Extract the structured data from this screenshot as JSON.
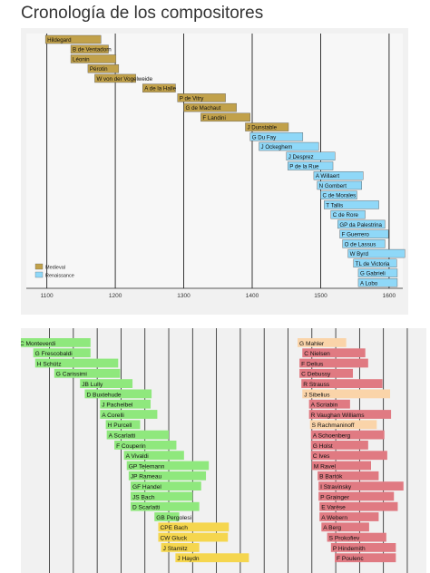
{
  "page": {
    "title": "Cronología de los compositores"
  },
  "colors": {
    "Medieval": "#c1a14a",
    "Renaissance": "#8fd8f8",
    "Baroque": "#8fe87d",
    "Classical": "#f5d64e",
    "Romantic": "#fad4a9",
    "Modern": "#e07a82",
    "grid": "#222222",
    "bar_edge": "#555555"
  },
  "chart_data": [
    {
      "type": "bar",
      "orientation": "horizontal-timeline",
      "title": "",
      "xlabel": "",
      "ylabel": "",
      "xlim": [
        1070,
        1620
      ],
      "xticks": [
        1100,
        1200,
        1300,
        1400,
        1500,
        1600
      ],
      "grid": "vertical",
      "legend": {
        "position": "bottom-left",
        "entries": [
          "Medieval",
          "Renaissance"
        ]
      },
      "composers": [
        {
          "name": "Hildegard",
          "start": 1098,
          "end": 1179,
          "period": "Medieval"
        },
        {
          "name": "B de Ventadorn",
          "start": 1135,
          "end": 1190,
          "period": "Medieval"
        },
        {
          "name": "Léonin",
          "start": 1135,
          "end": 1201,
          "period": "Medieval"
        },
        {
          "name": "Pérotin",
          "start": 1160,
          "end": 1205,
          "period": "Medieval"
        },
        {
          "name": "W von der Vogelweide",
          "start": 1170,
          "end": 1230,
          "period": "Medieval"
        },
        {
          "name": "A de la Halle",
          "start": 1240,
          "end": 1288,
          "period": "Medieval"
        },
        {
          "name": "P de Vitry",
          "start": 1291,
          "end": 1361,
          "period": "Medieval"
        },
        {
          "name": "G de Machaut",
          "start": 1300,
          "end": 1377,
          "period": "Medieval"
        },
        {
          "name": "F Landini",
          "start": 1325,
          "end": 1397,
          "period": "Medieval"
        },
        {
          "name": "J Dunstable",
          "start": 1390,
          "end": 1453,
          "period": "Medieval"
        },
        {
          "name": "G Du Fay",
          "start": 1397,
          "end": 1474,
          "period": "Renaissance"
        },
        {
          "name": "J Ockeghem",
          "start": 1410,
          "end": 1497,
          "period": "Renaissance"
        },
        {
          "name": "J Desprez",
          "start": 1450,
          "end": 1521,
          "period": "Renaissance"
        },
        {
          "name": "P de la Rue",
          "start": 1452,
          "end": 1518,
          "period": "Renaissance"
        },
        {
          "name": "A Willaert",
          "start": 1490,
          "end": 1562,
          "period": "Renaissance"
        },
        {
          "name": "N Gombert",
          "start": 1495,
          "end": 1560,
          "period": "Renaissance"
        },
        {
          "name": "C de Morales",
          "start": 1500,
          "end": 1553,
          "period": "Renaissance"
        },
        {
          "name": "T Tallis",
          "start": 1505,
          "end": 1585,
          "period": "Renaissance"
        },
        {
          "name": "C de Rore",
          "start": 1515,
          "end": 1565,
          "period": "Renaissance"
        },
        {
          "name": "GP da Palestrina",
          "start": 1525,
          "end": 1594,
          "period": "Renaissance"
        },
        {
          "name": "F Guerrero",
          "start": 1528,
          "end": 1599,
          "period": "Renaissance"
        },
        {
          "name": "O de Lassus",
          "start": 1532,
          "end": 1594,
          "period": "Renaissance"
        },
        {
          "name": "W Byrd",
          "start": 1540,
          "end": 1623,
          "period": "Renaissance"
        },
        {
          "name": "TL de Victoria",
          "start": 1548,
          "end": 1611,
          "period": "Renaissance"
        },
        {
          "name": "G Gabrieli",
          "start": 1555,
          "end": 1612,
          "period": "Renaissance"
        },
        {
          "name": "A Lobo",
          "start": 1555,
          "end": 1612,
          "period": "Renaissance"
        }
      ]
    },
    {
      "type": "bar",
      "orientation": "horizontal-timeline",
      "title": "",
      "xlabel": "",
      "ylabel": "",
      "xlim": [
        1570,
        1995
      ],
      "grid": "vertical",
      "composers": [
        {
          "name": "C Monteverdi",
          "start": 1567,
          "end": 1643,
          "period": "Baroque"
        },
        {
          "name": "G Frescobaldi",
          "start": 1583,
          "end": 1643,
          "period": "Baroque"
        },
        {
          "name": "H Schütz",
          "start": 1585,
          "end": 1672,
          "period": "Baroque"
        },
        {
          "name": "G Carissimi",
          "start": 1605,
          "end": 1674,
          "period": "Baroque"
        },
        {
          "name": "JB Lully",
          "start": 1632,
          "end": 1687,
          "period": "Baroque"
        },
        {
          "name": "D Buxtehude",
          "start": 1637,
          "end": 1707,
          "period": "Baroque"
        },
        {
          "name": "J Pachelbel",
          "start": 1653,
          "end": 1706,
          "period": "Baroque"
        },
        {
          "name": "A Corelli",
          "start": 1653,
          "end": 1713,
          "period": "Baroque"
        },
        {
          "name": "H Purcell",
          "start": 1659,
          "end": 1695,
          "period": "Baroque"
        },
        {
          "name": "A Scarlatti",
          "start": 1660,
          "end": 1725,
          "period": "Baroque"
        },
        {
          "name": "F Couperin",
          "start": 1668,
          "end": 1733,
          "period": "Baroque"
        },
        {
          "name": "A Vivaldi",
          "start": 1678,
          "end": 1741,
          "period": "Baroque"
        },
        {
          "name": "GP Telemann",
          "start": 1681,
          "end": 1767,
          "period": "Baroque"
        },
        {
          "name": "JP Rameau",
          "start": 1683,
          "end": 1764,
          "period": "Baroque"
        },
        {
          "name": "GF Handel",
          "start": 1685,
          "end": 1759,
          "period": "Baroque"
        },
        {
          "name": "JS Bach",
          "start": 1685,
          "end": 1750,
          "period": "Baroque"
        },
        {
          "name": "D Scarlatti",
          "start": 1685,
          "end": 1757,
          "period": "Baroque"
        },
        {
          "name": "GB Pergolesi",
          "start": 1710,
          "end": 1736,
          "period": "Baroque"
        },
        {
          "name": "CPE Bach",
          "start": 1714,
          "end": 1788,
          "period": "Classical"
        },
        {
          "name": "CW Gluck",
          "start": 1714,
          "end": 1787,
          "period": "Classical"
        },
        {
          "name": "J Stamitz",
          "start": 1717,
          "end": 1757,
          "period": "Classical"
        },
        {
          "name": "J Haydn",
          "start": 1732,
          "end": 1809,
          "period": "Classical"
        },
        {
          "name": "G Mahler",
          "start": 1860,
          "end": 1911,
          "period": "Romantic"
        },
        {
          "name": "C Nielsen",
          "start": 1865,
          "end": 1931,
          "period": "Modern"
        },
        {
          "name": "F Delius",
          "start": 1862,
          "end": 1934,
          "period": "Modern"
        },
        {
          "name": "C Debussy",
          "start": 1862,
          "end": 1918,
          "period": "Modern"
        },
        {
          "name": "R Strauss",
          "start": 1864,
          "end": 1949,
          "period": "Modern"
        },
        {
          "name": "J Sibelius",
          "start": 1865,
          "end": 1957,
          "period": "Romantic"
        },
        {
          "name": "A Scriabin",
          "start": 1872,
          "end": 1915,
          "period": "Modern"
        },
        {
          "name": "R Vaughan Williams",
          "start": 1872,
          "end": 1958,
          "period": "Modern"
        },
        {
          "name": "S Rachmaninoff",
          "start": 1873,
          "end": 1943,
          "period": "Romantic"
        },
        {
          "name": "A Schoenberg",
          "start": 1874,
          "end": 1951,
          "period": "Modern"
        },
        {
          "name": "G Holst",
          "start": 1874,
          "end": 1934,
          "period": "Modern"
        },
        {
          "name": "C Ives",
          "start": 1874,
          "end": 1954,
          "period": "Modern"
        },
        {
          "name": "M Ravel",
          "start": 1875,
          "end": 1937,
          "period": "Modern"
        },
        {
          "name": "B Bartók",
          "start": 1881,
          "end": 1945,
          "period": "Modern"
        },
        {
          "name": "I Stravinsky",
          "start": 1882,
          "end": 1971,
          "period": "Modern"
        },
        {
          "name": "P Grainger",
          "start": 1882,
          "end": 1961,
          "period": "Modern"
        },
        {
          "name": "E Varèse",
          "start": 1883,
          "end": 1965,
          "period": "Modern"
        },
        {
          "name": "A Webern",
          "start": 1883,
          "end": 1945,
          "period": "Modern"
        },
        {
          "name": "A Berg",
          "start": 1885,
          "end": 1935,
          "period": "Modern"
        },
        {
          "name": "S Prokofiev",
          "start": 1891,
          "end": 1953,
          "period": "Modern"
        },
        {
          "name": "P Hindemith",
          "start": 1895,
          "end": 1963,
          "period": "Modern"
        },
        {
          "name": "F Poulenc",
          "start": 1899,
          "end": 1963,
          "period": "Modern"
        }
      ]
    }
  ]
}
